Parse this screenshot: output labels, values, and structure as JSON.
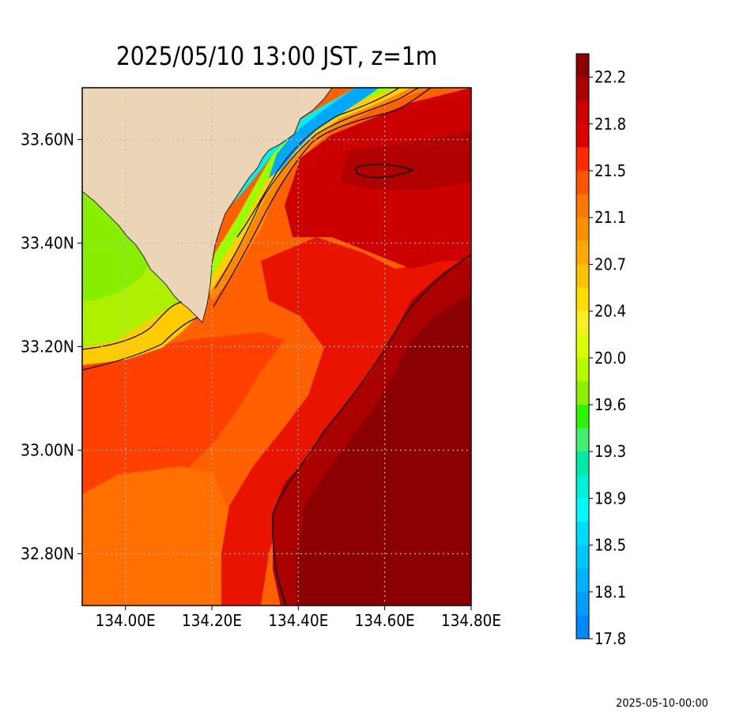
{
  "title": "2025/05/10 13:00 JST, z=1m",
  "timestamp": "2025-05-10-00:00",
  "map": {
    "lon_range": [
      133.9,
      134.8
    ],
    "lat_range": [
      32.7,
      33.7
    ],
    "lon_ticks": [
      {
        "value": 134.0,
        "label": "134.00E"
      },
      {
        "value": 134.2,
        "label": "134.20E"
      },
      {
        "value": 134.4,
        "label": "134.40E"
      },
      {
        "value": 134.6,
        "label": "134.60E"
      },
      {
        "value": 134.8,
        "label": "134.80E"
      }
    ],
    "lat_ticks": [
      {
        "value": 32.8,
        "label": "32.80N"
      },
      {
        "value": 33.0,
        "label": "33.00N"
      },
      {
        "value": 33.2,
        "label": "33.20N"
      },
      {
        "value": 33.4,
        "label": "33.40N"
      },
      {
        "value": 33.6,
        "label": "33.60N"
      }
    ],
    "grid": true,
    "land_color": "#ecd5b6",
    "ocean_background": "#e04010"
  },
  "colorbar": {
    "labels": [
      "22.2",
      "21.8",
      "21.5",
      "21.1",
      "20.7",
      "20.4",
      "20.0",
      "19.6",
      "19.3",
      "18.9",
      "18.5",
      "18.1",
      "17.8"
    ],
    "colors_top_to_bottom": [
      "#8b0000",
      "#aa0000",
      "#cc0000",
      "#e00000",
      "#ff2a00",
      "#ff5500",
      "#ff7700",
      "#ff9100",
      "#ffa800",
      "#ffc200",
      "#ffdd00",
      "#f4f024",
      "#d8ff00",
      "#b6fa00",
      "#8ef000",
      "#2cf500",
      "#40ee70",
      "#00eaa6",
      "#00f2d6",
      "#00f8ff",
      "#00dcff",
      "#00c6ff",
      "#00b2ff",
      "#009cff",
      "#0088ff"
    ]
  },
  "colors": {
    "c1": "#8b0000",
    "c2": "#cc0000",
    "c3": "#e00000",
    "c4": "#ff3300",
    "c5": "#ff6600",
    "c6": "#ff8800",
    "c7": "#ffa500",
    "c8": "#ffd000",
    "c9": "#ccff00",
    "c10": "#99ff00",
    "c11": "#00ffee",
    "c12": "#00aaff"
  }
}
